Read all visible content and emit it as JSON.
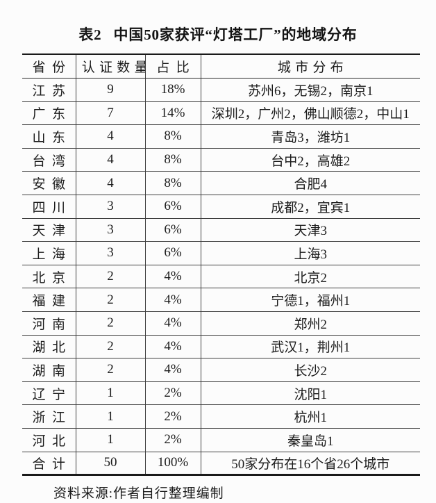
{
  "title": {
    "tag": "表2",
    "text": "中国50家获评“灯塔工厂”的地域分布"
  },
  "table": {
    "headers": [
      "省份",
      "认证数量",
      "占比",
      "城市分布"
    ],
    "rows": [
      {
        "province": "江苏",
        "count": "9",
        "share": "18%",
        "cities": "苏州6，无锡2，南京1"
      },
      {
        "province": "广东",
        "count": "7",
        "share": "14%",
        "cities": "深圳2，广州2，佛山顺德2，中山1"
      },
      {
        "province": "山东",
        "count": "4",
        "share": "8%",
        "cities": "青岛3，潍坊1"
      },
      {
        "province": "台湾",
        "count": "4",
        "share": "8%",
        "cities": "台中2，高雄2"
      },
      {
        "province": "安徽",
        "count": "4",
        "share": "8%",
        "cities": "合肥4"
      },
      {
        "province": "四川",
        "count": "3",
        "share": "6%",
        "cities": "成都2，宜宾1"
      },
      {
        "province": "天津",
        "count": "3",
        "share": "6%",
        "cities": "天津3"
      },
      {
        "province": "上海",
        "count": "3",
        "share": "6%",
        "cities": "上海3"
      },
      {
        "province": "北京",
        "count": "2",
        "share": "4%",
        "cities": "北京2"
      },
      {
        "province": "福建",
        "count": "2",
        "share": "4%",
        "cities": "宁德1，福州1"
      },
      {
        "province": "河南",
        "count": "2",
        "share": "4%",
        "cities": "郑州2"
      },
      {
        "province": "湖北",
        "count": "2",
        "share": "4%",
        "cities": "武汉1，荆州1"
      },
      {
        "province": "湖南",
        "count": "2",
        "share": "4%",
        "cities": "长沙2"
      },
      {
        "province": "辽宁",
        "count": "1",
        "share": "2%",
        "cities": "沈阳1"
      },
      {
        "province": "浙江",
        "count": "1",
        "share": "2%",
        "cities": "杭州1"
      },
      {
        "province": "河北",
        "count": "1",
        "share": "2%",
        "cities": "秦皇岛1"
      }
    ],
    "total": {
      "province": "合计",
      "count": "50",
      "share": "100%",
      "cities": "50家分布在16个省26个城市"
    }
  },
  "source": "资料来源:作者自行整理编制",
  "colors": {
    "background": "#fcfcfc",
    "text": "#1c1c1c",
    "rule_light": "#3f3f3f",
    "rule_heavy": "#1a1a1a"
  }
}
